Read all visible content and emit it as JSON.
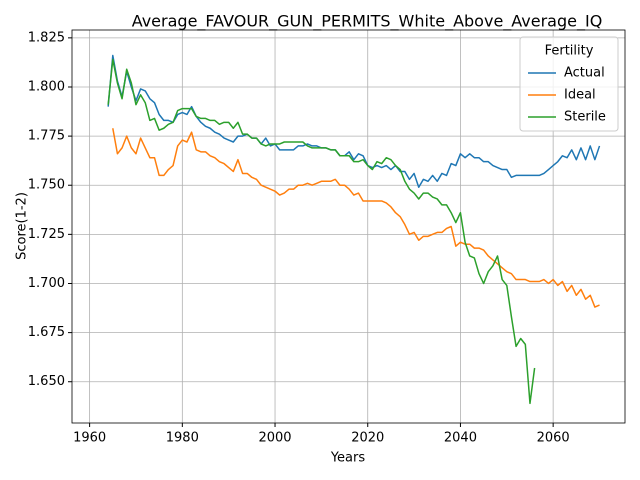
{
  "chart_data": {
    "type": "line",
    "title": "Average_FAVOUR_GUN_PERMITS_White_Above_Average_IQ",
    "xlabel": "Years",
    "ylabel": "Score(1-2)",
    "grid": true,
    "legend_title": "Fertility",
    "legend_loc": "upper right",
    "xlim": [
      1956.2,
      2075.5
    ],
    "xticks": [
      1960,
      1980,
      2000,
      2020,
      2040,
      2060
    ],
    "ylim": [
      1.629,
      1.829
    ],
    "yticks": [
      {
        "value": 1.65,
        "label": "1.650"
      },
      {
        "value": 1.675,
        "label": "1.675"
      },
      {
        "value": 1.7,
        "label": "1.700"
      },
      {
        "value": 1.725,
        "label": "1.725"
      },
      {
        "value": 1.75,
        "label": "1.750"
      },
      {
        "value": 1.775,
        "label": "1.775"
      },
      {
        "value": 1.8,
        "label": "1.800"
      },
      {
        "value": 1.825,
        "label": "1.825"
      }
    ],
    "x": [
      1964,
      1965,
      1966,
      1967,
      1968,
      1969,
      1970,
      1971,
      1972,
      1973,
      1974,
      1975,
      1976,
      1977,
      1978,
      1979,
      1980,
      1981,
      1982,
      1983,
      1984,
      1985,
      1986,
      1987,
      1988,
      1989,
      1990,
      1991,
      1992,
      1993,
      1994,
      1995,
      1996,
      1997,
      1998,
      1999,
      2000,
      2001,
      2002,
      2003,
      2004,
      2005,
      2006,
      2007,
      2008,
      2009,
      2010,
      2011,
      2012,
      2013,
      2014,
      2015,
      2016,
      2017,
      2018,
      2019,
      2020,
      2021,
      2022,
      2023,
      2024,
      2025,
      2026,
      2027,
      2028,
      2029,
      2030,
      2031,
      2032,
      2033,
      2034,
      2035,
      2036,
      2037,
      2038,
      2039,
      2040,
      2041,
      2042,
      2043,
      2044,
      2045,
      2046,
      2047,
      2048,
      2049,
      2050,
      2051,
      2052,
      2053,
      2054,
      2055,
      2056,
      2057,
      2058,
      2059,
      2060,
      2061,
      2062,
      2063,
      2064,
      2065,
      2066,
      2067,
      2068,
      2069,
      2070
    ],
    "series": [
      {
        "name": "Actual",
        "color": "#1f77b4",
        "values": [
          1.79,
          1.816,
          1.803,
          1.795,
          1.808,
          1.8,
          1.793,
          1.799,
          1.798,
          1.794,
          1.792,
          1.786,
          1.783,
          1.783,
          1.782,
          1.786,
          1.787,
          1.786,
          1.79,
          1.785,
          1.782,
          1.78,
          1.779,
          1.777,
          1.776,
          1.774,
          1.773,
          1.772,
          1.775,
          1.775,
          1.776,
          1.774,
          1.774,
          1.771,
          1.774,
          1.77,
          1.771,
          1.768,
          1.768,
          1.768,
          1.768,
          1.77,
          1.77,
          1.771,
          1.77,
          1.77,
          1.769,
          1.769,
          1.768,
          1.768,
          1.765,
          1.765,
          1.767,
          1.763,
          1.766,
          1.765,
          1.76,
          1.759,
          1.76,
          1.759,
          1.76,
          1.758,
          1.76,
          1.757,
          1.757,
          1.753,
          1.756,
          1.749,
          1.753,
          1.752,
          1.755,
          1.752,
          1.756,
          1.755,
          1.761,
          1.76,
          1.766,
          1.764,
          1.766,
          1.764,
          1.764,
          1.762,
          1.762,
          1.76,
          1.759,
          1.758,
          1.758,
          1.754,
          1.755,
          1.755,
          1.755,
          1.755,
          1.755,
          1.755,
          1.756,
          1.758,
          1.76,
          1.762,
          1.765,
          1.764,
          1.768,
          1.763,
          1.769,
          1.763,
          1.77,
          1.763,
          1.77
        ]
      },
      {
        "name": "Ideal",
        "color": "#ff7f0e",
        "values": [
          null,
          1.779,
          1.766,
          1.769,
          1.775,
          1.769,
          1.766,
          1.774,
          1.769,
          1.764,
          1.764,
          1.755,
          1.755,
          1.758,
          1.76,
          1.77,
          1.773,
          1.772,
          1.777,
          1.768,
          1.767,
          1.767,
          1.765,
          1.764,
          1.762,
          1.761,
          1.759,
          1.757,
          1.763,
          1.756,
          1.756,
          1.754,
          1.753,
          1.75,
          1.749,
          1.748,
          1.747,
          1.745,
          1.746,
          1.748,
          1.748,
          1.75,
          1.75,
          1.751,
          1.75,
          1.751,
          1.752,
          1.752,
          1.752,
          1.753,
          1.75,
          1.75,
          1.748,
          1.745,
          1.746,
          1.742,
          1.742,
          1.742,
          1.742,
          1.742,
          1.741,
          1.739,
          1.736,
          1.734,
          1.73,
          1.725,
          1.726,
          1.722,
          1.724,
          1.724,
          1.725,
          1.726,
          1.726,
          1.728,
          1.729,
          1.719,
          1.721,
          1.72,
          1.72,
          1.718,
          1.718,
          1.717,
          1.714,
          1.712,
          1.71,
          1.708,
          1.706,
          1.705,
          1.702,
          1.702,
          1.702,
          1.701,
          1.701,
          1.701,
          1.702,
          1.7,
          1.702,
          1.699,
          1.701,
          1.696,
          1.699,
          1.694,
          1.697,
          1.692,
          1.694,
          1.688,
          1.689
        ]
      },
      {
        "name": "Sterile",
        "color": "#2ca02c",
        "values": [
          1.791,
          1.814,
          1.802,
          1.794,
          1.809,
          1.802,
          1.791,
          1.796,
          1.792,
          1.783,
          1.784,
          1.778,
          1.779,
          1.781,
          1.782,
          1.788,
          1.789,
          1.789,
          1.789,
          1.785,
          1.784,
          1.784,
          1.783,
          1.783,
          1.781,
          1.782,
          1.782,
          1.779,
          1.782,
          1.776,
          1.776,
          1.774,
          1.774,
          1.771,
          1.77,
          1.771,
          1.771,
          1.771,
          1.772,
          1.772,
          1.772,
          1.772,
          1.772,
          1.77,
          1.769,
          1.769,
          1.769,
          1.769,
          1.768,
          1.768,
          1.765,
          1.765,
          1.765,
          1.762,
          1.762,
          1.763,
          1.76,
          1.758,
          1.762,
          1.761,
          1.764,
          1.763,
          1.76,
          1.758,
          1.752,
          1.748,
          1.746,
          1.743,
          1.746,
          1.746,
          1.744,
          1.743,
          1.74,
          1.74,
          1.736,
          1.731,
          1.736,
          1.721,
          1.714,
          1.713,
          1.705,
          1.7,
          1.706,
          1.709,
          1.714,
          1.702,
          1.699,
          1.683,
          1.668,
          1.672,
          1.669,
          1.639,
          1.657,
          null,
          null,
          null,
          null,
          null,
          null,
          null,
          null,
          null,
          null,
          null,
          null,
          null,
          null
        ]
      }
    ]
  }
}
